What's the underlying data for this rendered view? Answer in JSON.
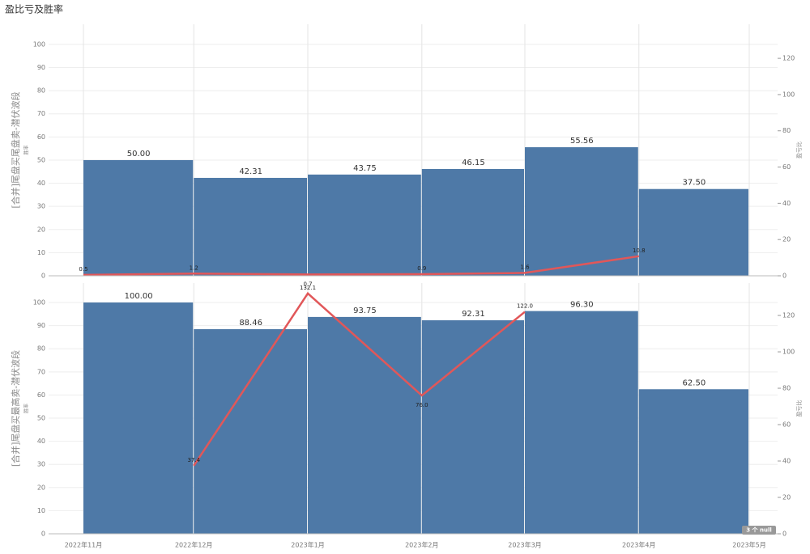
{
  "chart_data": [
    {
      "type": "bar_line",
      "title": "盈比亏及胜率",
      "y_label": "[合并]尾盘买尾盘卖-潜伏波段",
      "y_sublabel": "胜率",
      "y2_label": "盈亏比",
      "x": [
        "2022年11月",
        "2022年12月",
        "2023年1月",
        "2023年2月",
        "2023年3月",
        "2023年4月"
      ],
      "ylim": [
        0,
        108.7
      ],
      "yticks": [
        0,
        10,
        20,
        30,
        40,
        50,
        60,
        70,
        80,
        90,
        100
      ],
      "y2lim": [
        0,
        138.8
      ],
      "y2ticks": [
        0,
        20,
        40,
        60,
        80,
        100,
        120
      ],
      "bars": {
        "color": "#4e79a7",
        "values": [
          50,
          42.31,
          43.75,
          46.15,
          55.56,
          37.5
        ],
        "value_labels": [
          "50.00",
          "42.31",
          "43.75",
          "46.15",
          "55.56",
          "37.50"
        ]
      },
      "line": {
        "color": "#e15759",
        "values": [
          0.5,
          1.2,
          0.7,
          0.9,
          1.6,
          10.8
        ]
      }
    },
    {
      "type": "bar_line",
      "y_label": "[合并]尾盘买最高卖-潜伏波段",
      "y_sublabel": "胜率",
      "y2_label": "盈亏比",
      "x": [
        "2022年11月",
        "2022年12月",
        "2023年1月",
        "2023年2月",
        "2023年3月",
        "2023年4月"
      ],
      "ylim": [
        0,
        108.4
      ],
      "yticks": [
        0,
        10,
        20,
        30,
        40,
        50,
        60,
        70,
        80,
        90,
        100
      ],
      "y2lim": [
        0,
        137.8
      ],
      "y2ticks": [
        0,
        20,
        40,
        60,
        80,
        100,
        120
      ],
      "bars": {
        "color": "#4e79a7",
        "values": [
          100,
          88.46,
          93.75,
          92.31,
          96.3,
          62.5
        ],
        "value_labels": [
          "100.00",
          "88.46",
          "93.75",
          "92.31",
          "96.30",
          "62.50"
        ]
      },
      "line": {
        "color": "#e15759",
        "values": [
          null,
          37.4,
          132.1,
          76,
          122,
          null
        ],
        "value_labels": [
          null,
          "37.4",
          "132.1",
          "76.0",
          "122.0",
          null
        ]
      },
      "xticks": [
        "2022年11月",
        "2022年12月",
        "2023年1月",
        "2023年2月",
        "2023年3月",
        "2023年4月",
        "2023年5月"
      ],
      "null_note": "3 个 null"
    }
  ]
}
